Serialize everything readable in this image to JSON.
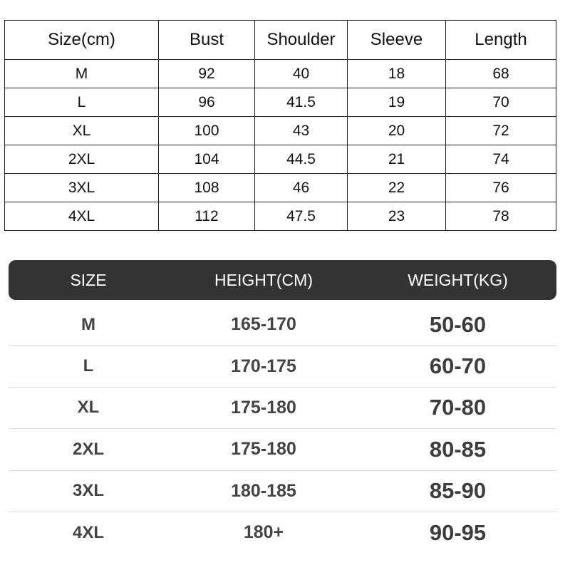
{
  "measurements": {
    "headers": [
      "Size(cm)",
      "Bust",
      "Shoulder",
      "Sleeve",
      "Length"
    ],
    "rows": [
      [
        "M",
        "92",
        "40",
        "18",
        "68"
      ],
      [
        "L",
        "96",
        "41.5",
        "19",
        "70"
      ],
      [
        "XL",
        "100",
        "43",
        "20",
        "72"
      ],
      [
        "2XL",
        "104",
        "44.5",
        "21",
        "74"
      ],
      [
        "3XL",
        "108",
        "46",
        "22",
        "76"
      ],
      [
        "4XL",
        "112",
        "47.5",
        "23",
        "78"
      ]
    ]
  },
  "fit_guide": {
    "headers": [
      "SIZE",
      "HEIGHT(CM)",
      "WEIGHT(KG)"
    ],
    "header_color": "#333333",
    "rows": [
      [
        "M",
        "165-170",
        "50-60"
      ],
      [
        "L",
        "170-175",
        "60-70"
      ],
      [
        "XL",
        "175-180",
        "70-80"
      ],
      [
        "2XL",
        "175-180",
        "80-85"
      ],
      [
        "3XL",
        "180-185",
        "85-90"
      ],
      [
        "4XL",
        "180+",
        "90-95"
      ]
    ]
  }
}
